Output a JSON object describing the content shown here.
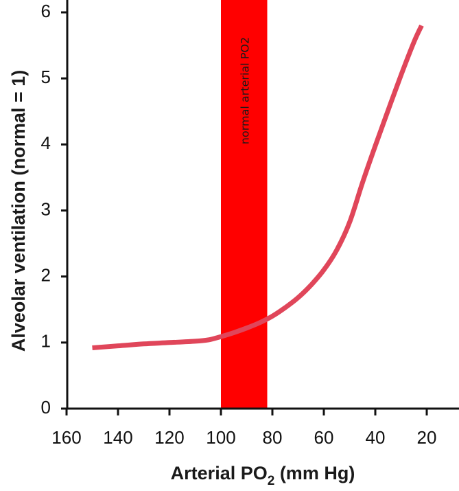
{
  "chart_data": {
    "type": "line",
    "xlabel": "Arterial PO",
    "xlabel_sub": "2",
    "xlabel_unit": " (mm Hg)",
    "ylabel": "Alveolar ventilation (normal = 1)",
    "x_reversed": true,
    "xlim": [
      160,
      20
    ],
    "ylim": [
      0,
      6
    ],
    "xticks": [
      160,
      140,
      120,
      100,
      80,
      60,
      40,
      20
    ],
    "yticks": [
      0,
      1,
      2,
      3,
      4,
      5,
      6
    ],
    "band": {
      "label": "normal arterial PO2",
      "x_range": [
        100,
        82
      ],
      "color": "#ff0000"
    },
    "series": [
      {
        "color": "#e0465a",
        "x": [
          150,
          140,
          130,
          120,
          110,
          105,
          100,
          95,
          90,
          85,
          80,
          75,
          70,
          65,
          60,
          55,
          50,
          45,
          40,
          35,
          30,
          25,
          22
        ],
        "y": [
          0.92,
          0.95,
          0.98,
          1.0,
          1.02,
          1.04,
          1.09,
          1.15,
          1.22,
          1.3,
          1.4,
          1.53,
          1.68,
          1.87,
          2.1,
          2.4,
          2.82,
          3.42,
          3.98,
          4.52,
          5.05,
          5.55,
          5.8
        ]
      }
    ]
  }
}
